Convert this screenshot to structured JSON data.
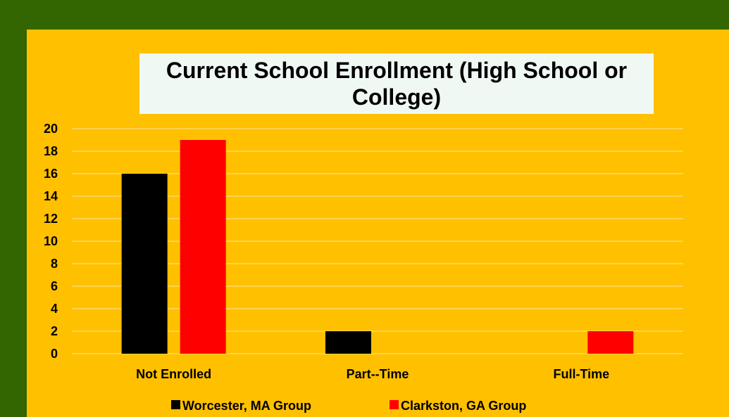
{
  "chart_data": {
    "type": "bar",
    "title": "Current School Enrollment (High School or College)",
    "categories": [
      "Not Enrolled",
      "Part--Time",
      "Full-Time"
    ],
    "series": [
      {
        "name": "Worcester, MA Group",
        "color": "#000000",
        "values": [
          16,
          2,
          0
        ]
      },
      {
        "name": "Clarkston, GA Group",
        "color": "#ff0000",
        "values": [
          19,
          0,
          2
        ]
      }
    ],
    "ylim": [
      0,
      20
    ],
    "yticks": [
      0,
      2,
      4,
      6,
      8,
      10,
      12,
      14,
      16,
      18,
      20
    ],
    "grid": true,
    "legend": "bottom"
  },
  "colors": {
    "background": "#336600",
    "plot_panel": "#ffc000",
    "title_box": "#f0f8f4",
    "gridline": "#ffe699"
  }
}
